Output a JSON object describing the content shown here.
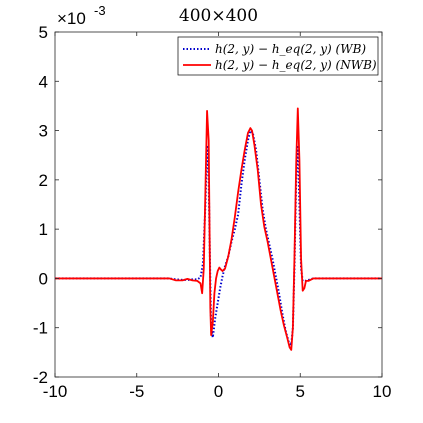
{
  "chart_data": {
    "type": "line",
    "title": "400×400",
    "xlabel": "",
    "ylabel": "",
    "xlim": [
      -10,
      10
    ],
    "ylim": [
      -2,
      5
    ],
    "y_scale_label": "×10",
    "y_scale_exponent": "-3",
    "xticks": [
      -10,
      -5,
      0,
      5,
      10
    ],
    "yticks": [
      -2,
      -1,
      0,
      1,
      2,
      3,
      4,
      5
    ],
    "grid": false,
    "legend_position": "top-right",
    "series": [
      {
        "name": "h(2, y) − h_eq(2, y) (WB)",
        "legend_label": "h(2, y) − h_eq(2, y) (WB)",
        "color": "#0000cc",
        "style": "dotted",
        "x": [
          -10,
          -3,
          -2.6,
          -2.2,
          -1.9,
          -1.6,
          -1.3,
          -1.1,
          -0.95,
          -0.8,
          -0.7,
          -0.6,
          -0.5,
          -0.45,
          -0.35,
          -0.2,
          -0.05,
          0.1,
          0.25,
          0.4,
          0.6,
          0.8,
          1.0,
          1.2,
          1.4,
          1.6,
          1.8,
          1.95,
          2.1,
          2.3,
          2.5,
          2.7,
          2.9,
          3.1,
          3.3,
          3.5,
          3.7,
          3.9,
          4.1,
          4.3,
          4.45,
          4.55,
          4.65,
          4.75,
          4.85,
          4.95,
          5.05,
          5.15,
          5.3,
          5.5,
          5.8,
          6.2,
          10
        ],
        "values": [
          0,
          0,
          -0.02,
          -0.03,
          -0.03,
          -0.02,
          -0.02,
          0.02,
          0.3,
          1.5,
          2.7,
          2.0,
          -0.1,
          -1.0,
          -1.2,
          -0.8,
          -0.5,
          -0.2,
          0.05,
          0.25,
          0.45,
          0.75,
          1.0,
          1.3,
          1.9,
          2.4,
          2.8,
          3.0,
          2.95,
          2.6,
          2.0,
          1.4,
          1.0,
          0.7,
          0.4,
          0.05,
          -0.3,
          -0.7,
          -1.05,
          -1.3,
          -1.35,
          -1.0,
          0.3,
          2.0,
          2.7,
          1.5,
          0.2,
          -0.05,
          -0.05,
          -0.03,
          0,
          0,
          0
        ]
      },
      {
        "name": "h(2, y) − h_eq(2, y) (NWB)",
        "legend_label": "h(2, y) − h_eq(2, y) (NWB)",
        "color": "#ff0000",
        "style": "solid",
        "x": [
          -10,
          -3,
          -2.6,
          -2.2,
          -1.9,
          -1.6,
          -1.3,
          -1.1,
          -1.0,
          -0.9,
          -0.8,
          -0.7,
          -0.6,
          -0.5,
          -0.45,
          -0.35,
          -0.25,
          -0.15,
          -0.05,
          0.05,
          0.15,
          0.25,
          0.4,
          0.6,
          0.8,
          1.0,
          1.2,
          1.4,
          1.6,
          1.8,
          1.95,
          2.05,
          2.2,
          2.4,
          2.6,
          2.8,
          3.0,
          3.2,
          3.4,
          3.6,
          3.8,
          4.0,
          4.2,
          4.35,
          4.45,
          4.55,
          4.65,
          4.75,
          4.85,
          4.95,
          5.05,
          5.15,
          5.25,
          5.35,
          5.5,
          5.8,
          6.2,
          10
        ],
        "values": [
          0,
          0,
          -0.04,
          -0.04,
          -0.01,
          -0.04,
          -0.05,
          -0.1,
          -0.3,
          0.2,
          1.8,
          3.4,
          2.8,
          -0.6,
          -1.15,
          -0.9,
          -0.3,
          0.0,
          0.15,
          0.22,
          0.18,
          0.15,
          0.2,
          0.45,
          0.8,
          1.25,
          1.75,
          2.2,
          2.6,
          2.95,
          3.05,
          3.0,
          2.7,
          2.2,
          1.5,
          1.05,
          0.75,
          0.4,
          0.05,
          -0.3,
          -0.65,
          -0.95,
          -1.2,
          -1.4,
          -1.45,
          -1.0,
          0.5,
          2.3,
          3.45,
          2.4,
          0.4,
          -0.25,
          -0.2,
          -0.05,
          -0.05,
          0,
          0,
          0
        ]
      }
    ]
  }
}
